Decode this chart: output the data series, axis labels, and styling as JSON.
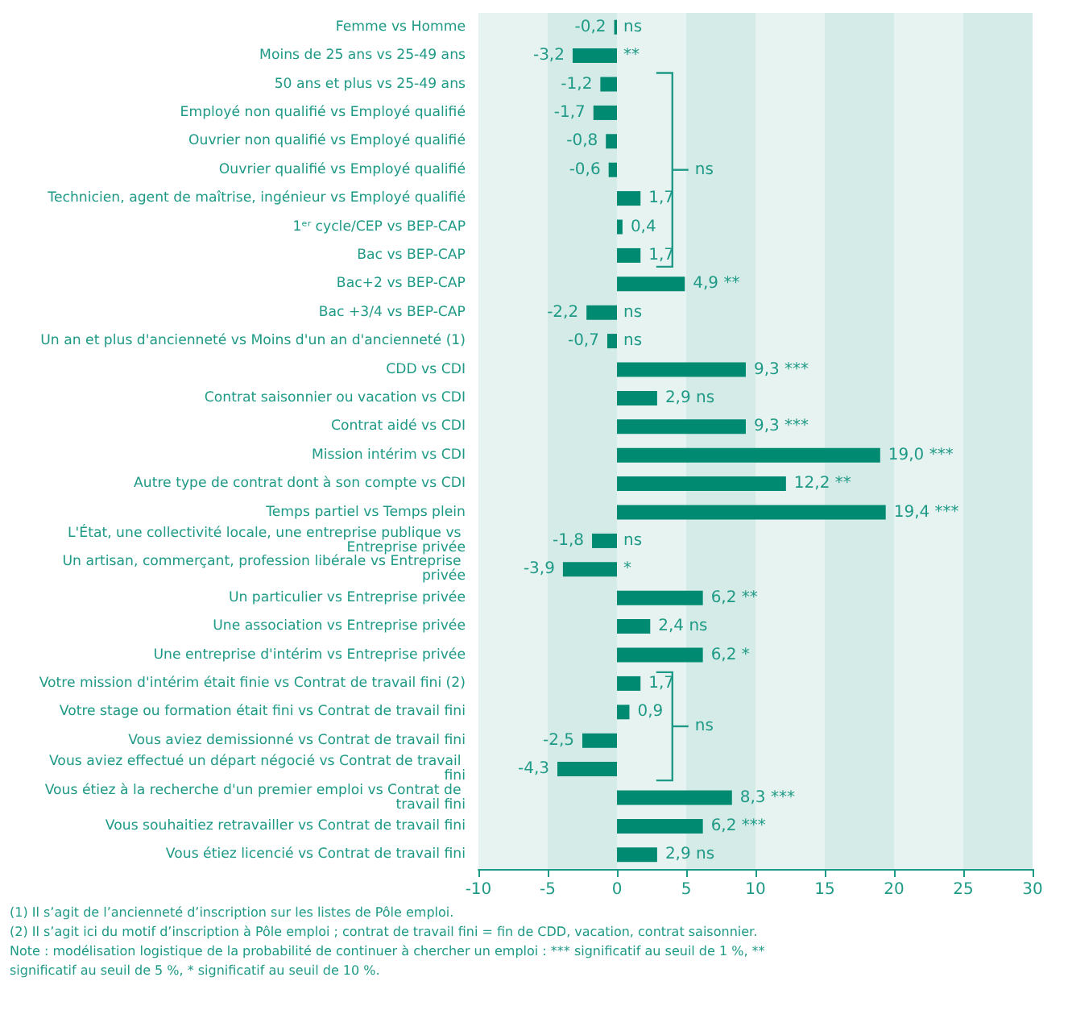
{
  "chart_data": {
    "type": "bar",
    "orientation": "horizontal",
    "color": "#008a72",
    "categories": [
      "Femme vs Homme",
      "Moins de 25 ans vs 25-49 ans",
      "50 ans et plus vs 25-49 ans",
      "Employé non qualifié vs Employé qualifié",
      "Ouvrier non qualifié vs Employé qualifié",
      "Ouvrier qualifié vs Employé qualifié",
      "Technicien, agent de maîtrise, ingénieur vs Employé qualifié",
      "1ᵉʳ cycle/CEP vs BEP-CAP",
      "Bac vs BEP-CAP",
      "Bac+2 vs BEP-CAP",
      "Bac +3/4 vs BEP-CAP",
      "Un an et plus d'ancienneté vs Moins d'un an d'ancienneté (1)",
      "CDD vs CDI",
      "Contrat saisonnier ou vacation vs CDI",
      "Contrat aidé vs CDI",
      "Mission intérim vs CDI",
      "Autre type de contrat dont à son compte vs CDI",
      "Temps partiel vs Temps plein",
      "L'État, une collectivité locale, une entreprise publique vs Entreprise privée",
      "Un artisan, commerçant, profession libérale vs Entreprise privée",
      "Un particulier vs Entreprise privée",
      "Une association vs Entreprise privée",
      "Une entreprise d'intérim vs Entreprise privée",
      "Votre mission d'intérim était finie vs Contrat de travail fini (2)",
      "Votre stage ou formation était fini vs Contrat de travail fini",
      "Vous aviez demissionné vs Contrat de travail fini",
      "Vous aviez effectué un départ négocié vs Contrat de travail fini",
      "Vous étiez à la recherche d'un premier emploi vs Contrat de travail fini",
      "Vous souhaitiez retravailler vs Contrat de travail fini",
      "Vous étiez licencié vs Contrat de travail fini"
    ],
    "values": [
      -0.2,
      -3.2,
      -1.2,
      -1.7,
      -0.8,
      -0.6,
      1.7,
      0.4,
      1.7,
      4.9,
      -2.2,
      -0.7,
      9.3,
      2.9,
      9.3,
      19.0,
      12.2,
      19.4,
      -1.8,
      -3.9,
      6.2,
      2.4,
      6.2,
      1.7,
      0.9,
      -2.5,
      -4.3,
      8.3,
      6.2,
      2.9
    ],
    "value_labels": [
      "-0,2",
      "-3,2",
      "-1,2",
      "-1,7",
      "-0,8",
      "-0,6",
      "1,7",
      "0,4",
      "1,7",
      "4,9 **",
      "-2,2",
      "-0,7",
      "9,3 ***",
      "2,9 ns",
      "9,3 ***",
      "19,0 ***",
      "12,2 **",
      "19,4 ***",
      "-1,8",
      "-3,9",
      "6,2 **",
      "2,4 ns",
      "6,2 *",
      "1,7",
      "0,9",
      "-2,5",
      "-4,3",
      "8,3 ***",
      "6,2 ***",
      "2,9 ns"
    ],
    "xlim": [
      -10,
      30
    ],
    "xticks": [
      -10,
      -5,
      0,
      5,
      10,
      15,
      20,
      25,
      30
    ],
    "annotations": [
      "ns",
      "**",
      "ns",
      "ns",
      "ns",
      "*",
      "ns",
      "ns",
      "(1) Il s’agit de l’ancienneté d’inscription sur les listes de Pôle emploi.",
      "(2) Il s’agit ici du motif d’inscription à Pôle emploi ; contrat de travail fini = fin de CDD, vacation, contrat saisonnier.",
      "Note : modélisation logistique de la probabilité de continuer à chercher un emploi : *** significatif au seuil de 1 %, ** significatif au seuil de 5 %, * significatif au seuil de 10 %."
    ]
  }
}
